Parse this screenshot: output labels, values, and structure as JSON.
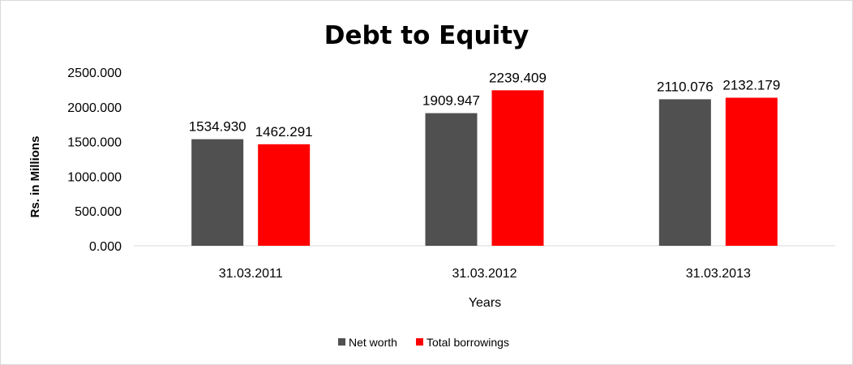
{
  "chart_data": {
    "type": "bar",
    "title": "Debt to Equity",
    "xlabel": "Years",
    "ylabel": "Rs. in Millions",
    "categories": [
      "31.03.2011",
      "31.03.2012",
      "31.03.2013"
    ],
    "series": [
      {
        "name": "Net worth",
        "values": [
          1534.93,
          1909.947,
          2110.076
        ],
        "color": "#505050",
        "labels": [
          "1534.930",
          "1909.947",
          "2110.076"
        ]
      },
      {
        "name": "Total borrowings",
        "values": [
          1462.291,
          2239.409,
          2132.179
        ],
        "color": "#ff0000",
        "labels": [
          "1462.291",
          "2239.409",
          "2132.179"
        ]
      }
    ],
    "ylim": [
      0,
      2500
    ],
    "yticks": [
      "0.000",
      "500.000",
      "1000.000",
      "1500.000",
      "2000.000",
      "2500.000"
    ],
    "grid": false,
    "legend": "bottom"
  }
}
